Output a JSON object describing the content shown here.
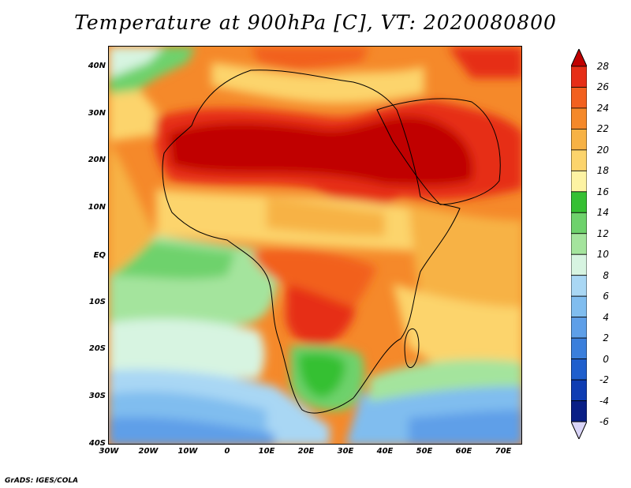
{
  "title": "Temperature at 900hPa [C], VT: 2020080800",
  "footer": "GrADS: IGES/COLA",
  "lat_labels": [
    "40N",
    "30N",
    "20N",
    "10N",
    "EQ",
    "10S",
    "20S",
    "30S",
    "40S"
  ],
  "lon_labels": [
    "30W",
    "20W",
    "10W",
    "0",
    "10E",
    "20E",
    "30E",
    "40E",
    "50E",
    "60E",
    "70E"
  ],
  "colorbar": {
    "labels": [
      "28",
      "26",
      "24",
      "22",
      "20",
      "18",
      "16",
      "14",
      "12",
      "10",
      "8",
      "6",
      "4",
      "2",
      "0",
      "-2",
      "-4",
      "-6"
    ],
    "colors": [
      "#c00000",
      "#e62e17",
      "#f2601f",
      "#f5892a",
      "#f7b245",
      "#fcd46c",
      "#fdf3a3",
      "#36c033",
      "#6ed26c",
      "#a4e49d",
      "#d7f4e1",
      "#a9d7f4",
      "#80bdef",
      "#5e9fe8",
      "#3b7fdc",
      "#1f5fcd",
      "#0f3db3",
      "#0a1f86",
      "#d9d4f7"
    ]
  },
  "legend": {
    "fields": "Temperature at 900hPa [C]"
  }
}
